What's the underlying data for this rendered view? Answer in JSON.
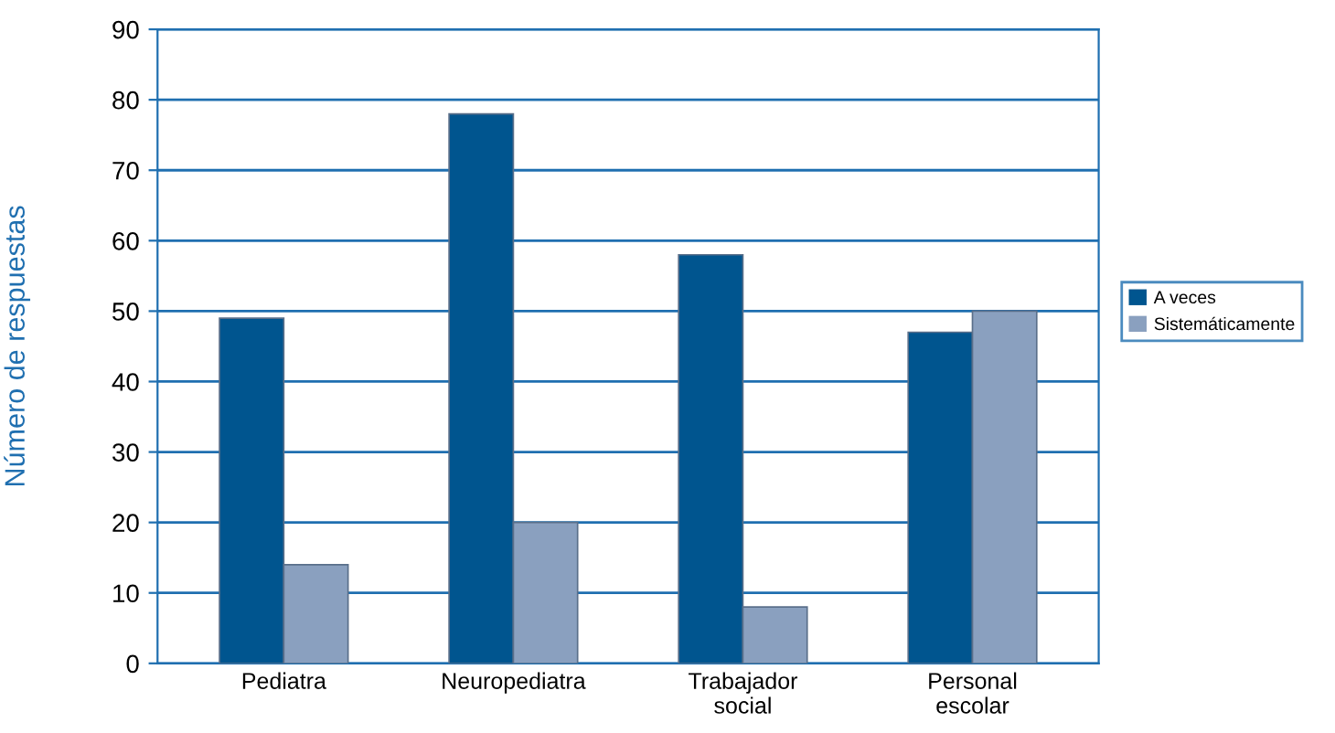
{
  "chart_data": {
    "type": "bar",
    "ylabel": "Número de respuestas",
    "categories": [
      "Pediatra",
      "Neuropediatra",
      "Trabajador\nsocial",
      "Personal\nescolar"
    ],
    "series": [
      {
        "name": "A veces",
        "color": "#00558f",
        "values": [
          49,
          78,
          58,
          47
        ]
      },
      {
        "name": "Sistemáticamente",
        "color": "#8aa0bf",
        "values": [
          14,
          20,
          8,
          50
        ]
      }
    ],
    "ylim": [
      0,
      90
    ],
    "yticks": [
      0,
      10,
      20,
      30,
      40,
      50,
      60,
      70,
      80,
      90
    ],
    "grid": "y",
    "legend": "right"
  }
}
